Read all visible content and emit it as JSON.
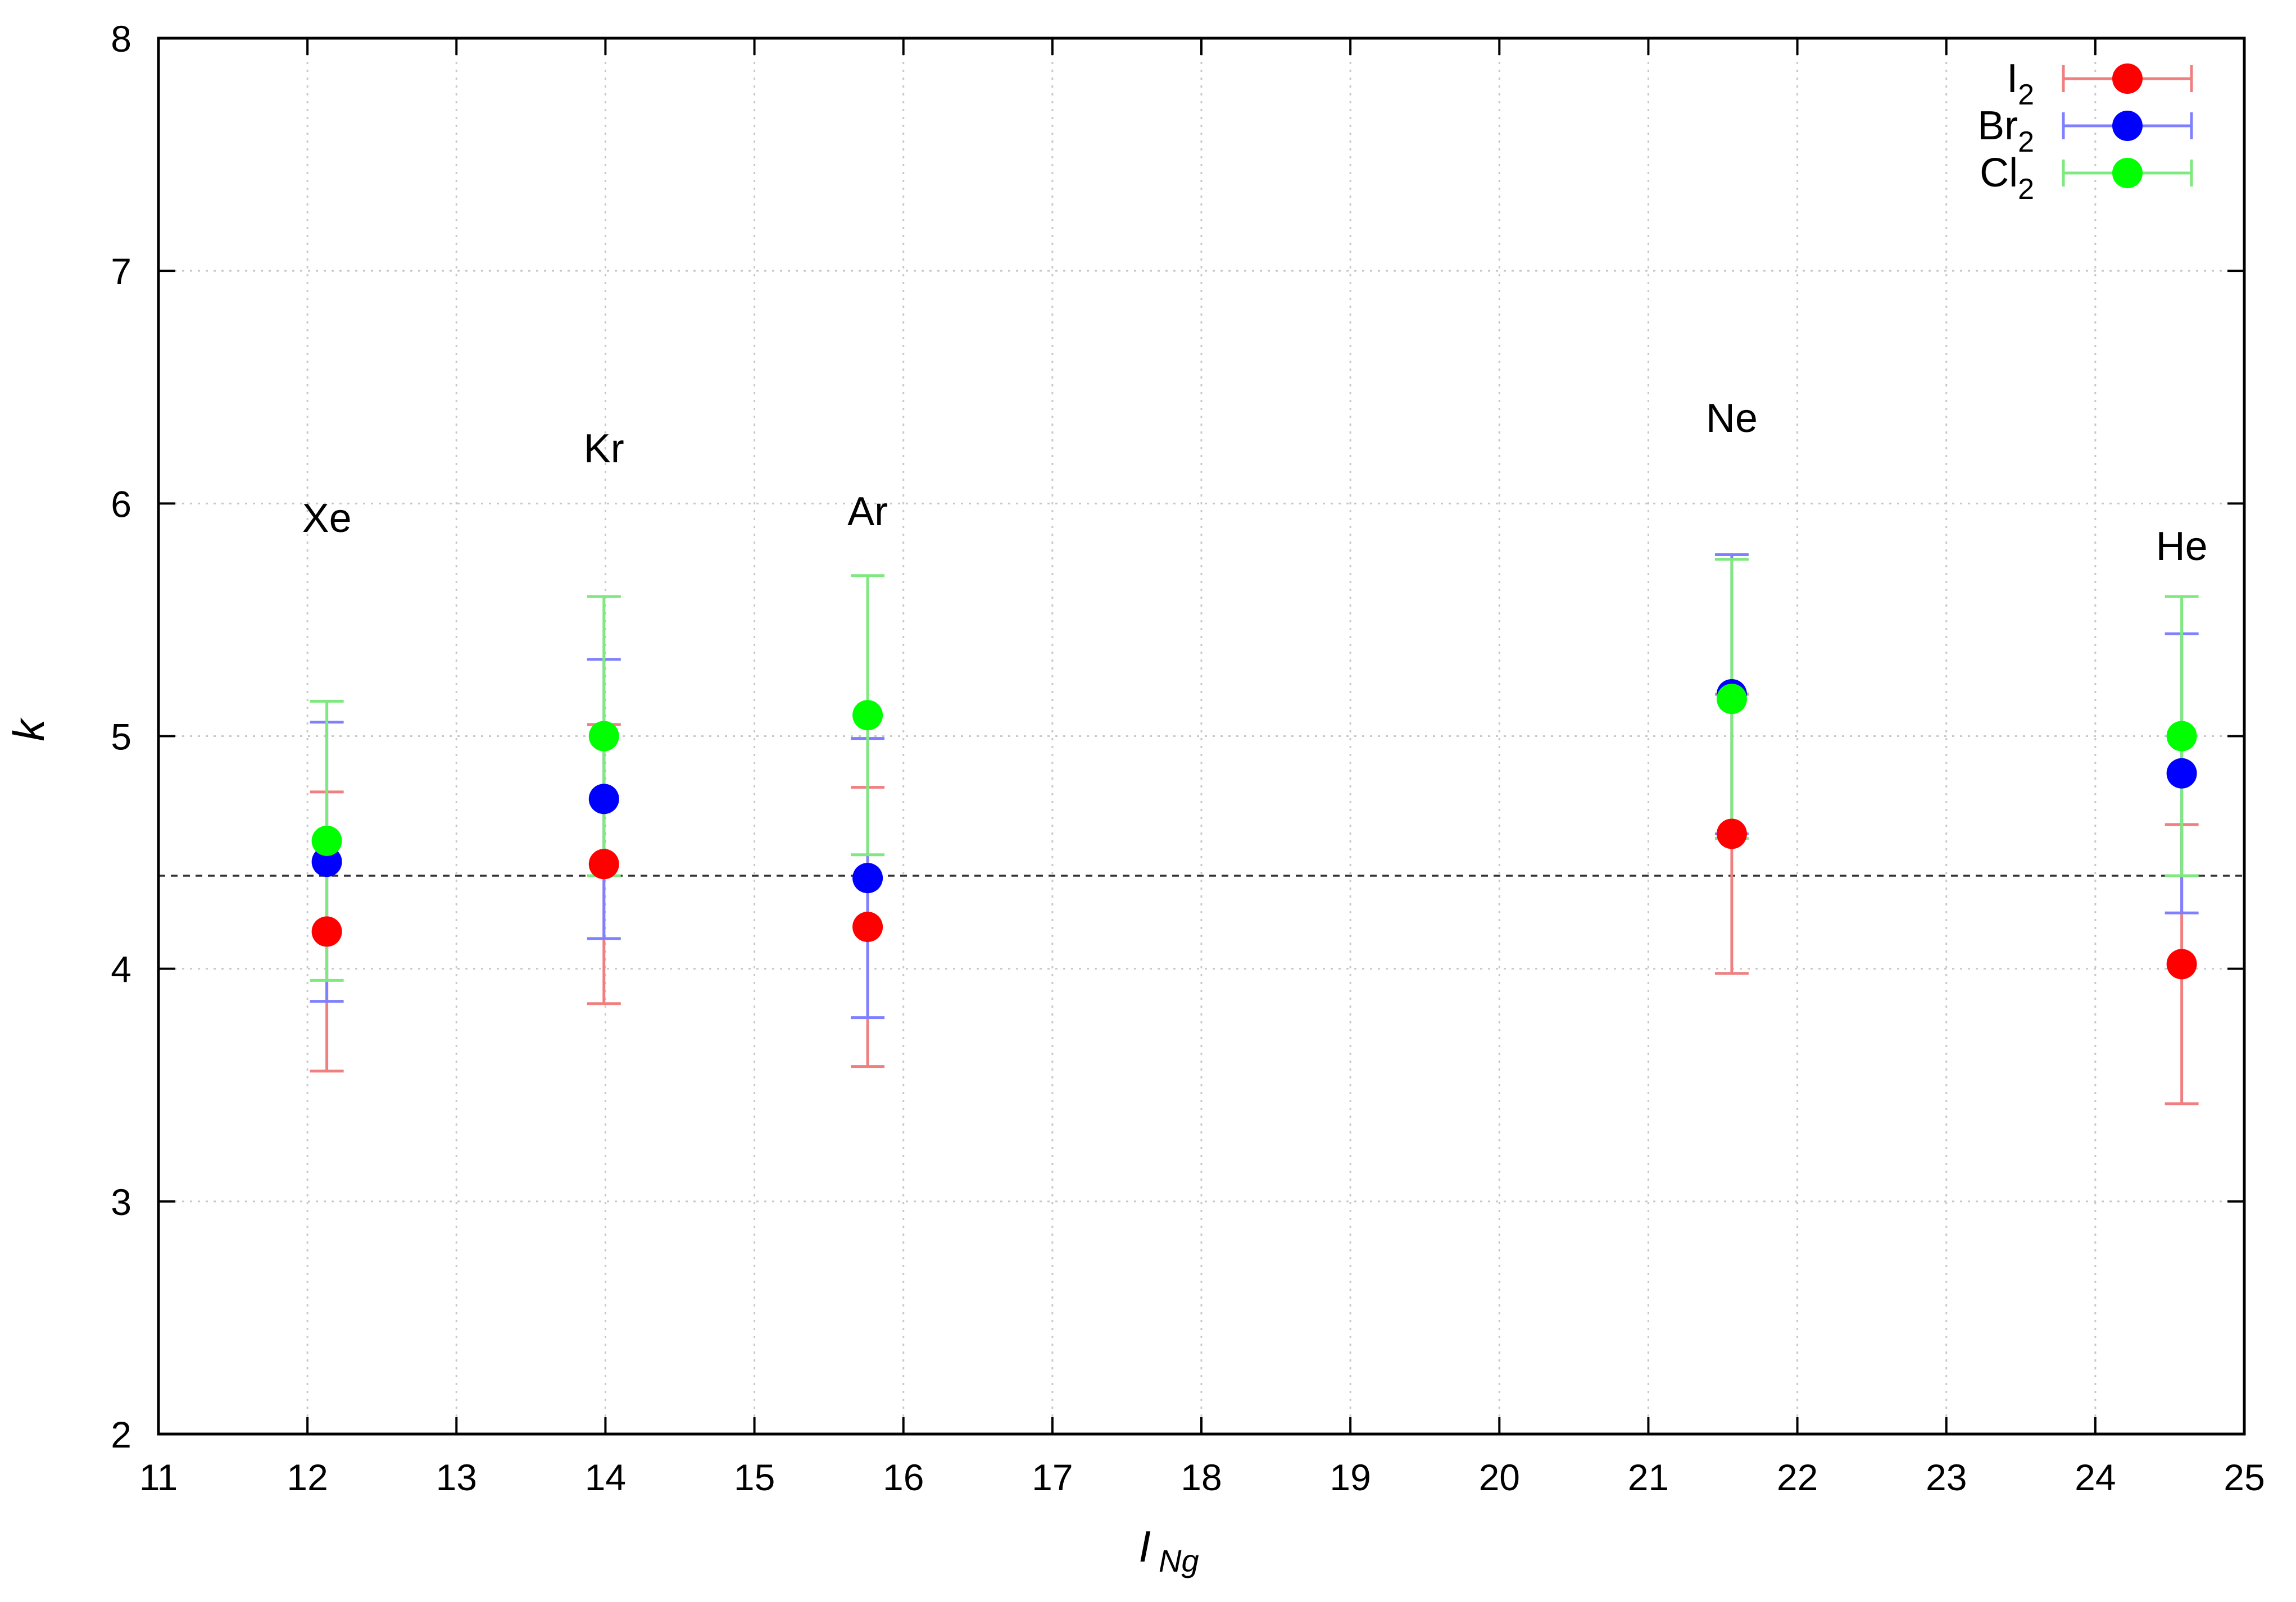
{
  "chart_data": {
    "type": "scatter",
    "xlabel": "I",
    "xlabel_sub": "Ng",
    "ylabel": "k",
    "xlim": [
      11,
      25
    ],
    "ylim": [
      2,
      8
    ],
    "x_ticks": [
      11,
      12,
      13,
      14,
      15,
      16,
      17,
      18,
      19,
      20,
      21,
      22,
      23,
      24,
      25
    ],
    "y_ticks": [
      2,
      3,
      4,
      5,
      6,
      7,
      8
    ],
    "grid": true,
    "legend_position": "top-right",
    "reference_line": {
      "y": 4.4,
      "style": "dashed"
    },
    "series": [
      {
        "name": "I",
        "name_sub": "2",
        "color": "#ff0000",
        "bar_color": "#f08080",
        "points": [
          {
            "x": 12.13,
            "y": 4.16,
            "err": 0.6
          },
          {
            "x": 13.99,
            "y": 4.45,
            "err": 0.6
          },
          {
            "x": 15.76,
            "y": 4.18,
            "err": 0.6
          },
          {
            "x": 21.56,
            "y": 4.58,
            "err": 0.6
          },
          {
            "x": 24.58,
            "y": 4.02,
            "err": 0.6
          }
        ]
      },
      {
        "name": "Br",
        "name_sub": "2",
        "color": "#0000ff",
        "bar_color": "#8080ff",
        "points": [
          {
            "x": 12.13,
            "y": 4.46,
            "err": 0.6
          },
          {
            "x": 13.99,
            "y": 4.73,
            "err": 0.6
          },
          {
            "x": 15.76,
            "y": 4.39,
            "err": 0.6
          },
          {
            "x": 21.56,
            "y": 5.18,
            "err": 0.6
          },
          {
            "x": 24.58,
            "y": 4.84,
            "err": 0.6
          }
        ]
      },
      {
        "name": "Cl",
        "name_sub": "2",
        "color": "#00ff00",
        "bar_color": "#7fe87f",
        "points": [
          {
            "x": 12.13,
            "y": 4.55,
            "err": 0.6
          },
          {
            "x": 13.99,
            "y": 5.0,
            "err": 0.6
          },
          {
            "x": 15.76,
            "y": 5.09,
            "err": 0.6
          },
          {
            "x": 21.56,
            "y": 5.16,
            "err": 0.6
          },
          {
            "x": 24.58,
            "y": 5.0,
            "err": 0.6
          }
        ]
      }
    ],
    "annotations": [
      {
        "text": "Xe",
        "x": 12.13,
        "y": 5.94
      },
      {
        "text": "Kr",
        "x": 13.99,
        "y": 6.24
      },
      {
        "text": "Ar",
        "x": 15.76,
        "y": 5.97
      },
      {
        "text": "Ne",
        "x": 21.56,
        "y": 6.37
      },
      {
        "text": "He",
        "x": 24.58,
        "y": 5.82
      }
    ]
  }
}
